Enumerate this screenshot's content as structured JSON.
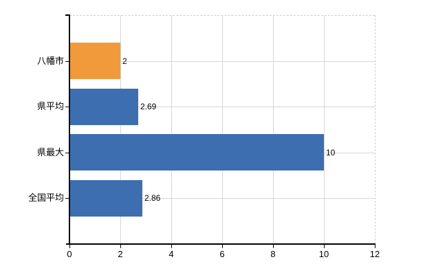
{
  "chart_data": {
    "type": "bar",
    "orientation": "horizontal",
    "title": "",
    "xlabel": "",
    "ylabel": "",
    "categories": [
      "八幡市",
      "県平均",
      "県最大",
      "全国平均"
    ],
    "values": [
      2,
      2.69,
      10,
      2.86
    ],
    "value_labels": [
      "2",
      "2.69",
      "10",
      "2.86"
    ],
    "bar_colors": [
      "#f09a3b",
      "#3d6eb0",
      "#3d6eb0",
      "#3d6eb0"
    ],
    "highlight_color": "#f09a3b",
    "default_color": "#3d6eb0",
    "xlim": [
      0,
      12
    ],
    "x_ticks": [
      0,
      2,
      4,
      6,
      8,
      10,
      12
    ],
    "x_tick_labels": [
      "0",
      "2",
      "4",
      "6",
      "8",
      "10",
      "12"
    ],
    "grid": true,
    "grid_color": "#d6d6d6",
    "axis_color": "#000000",
    "text_color": "#000000",
    "background_color": "#ffffff",
    "legend": "none"
  }
}
